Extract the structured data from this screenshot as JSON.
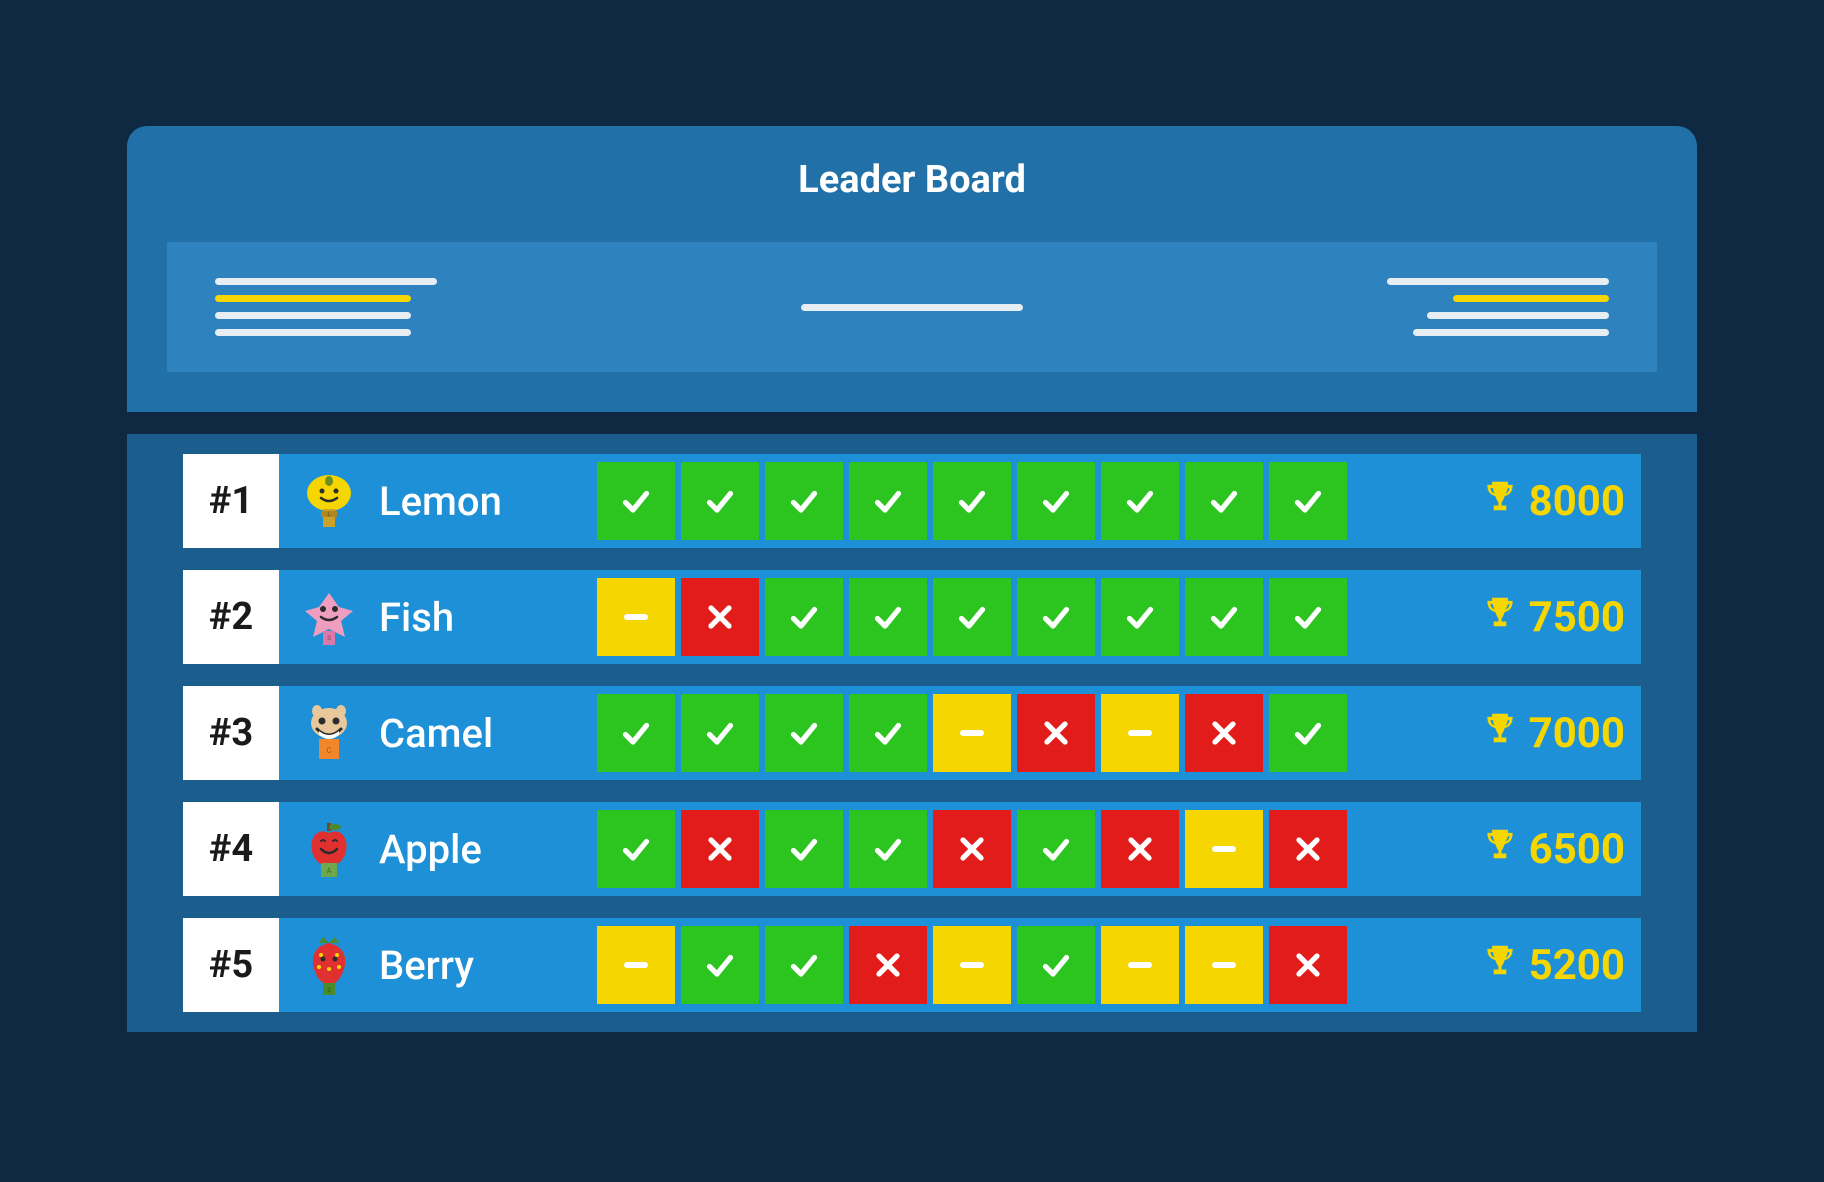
{
  "title": "Leader Board",
  "colors": {
    "page_bg": "#0f2942",
    "header_bg": "#2270a8",
    "info_bar_bg": "#2e82bd",
    "table_panel_bg": "#1b5d8c",
    "row_bg": "#1e90d7",
    "rank_bg": "#ffffff",
    "rank_text": "#1a1a1a",
    "name_text": "#ffffff",
    "title_text": "#ffffff",
    "score_text": "#f5d600",
    "trophy": "#f5d600",
    "result_correct": "#2cc51f",
    "result_wrong": "#e21b1b",
    "result_neutral": "#f5d600",
    "placeholder_white": "#e6eef4",
    "placeholder_yellow": "#f5d600"
  },
  "info_bar": {
    "left_lines": [
      {
        "color": "white",
        "width": "w220"
      },
      {
        "color": "yellow",
        "width": "w195"
      },
      {
        "color": "white",
        "width": "w195"
      },
      {
        "color": "white",
        "width": "w195"
      }
    ],
    "center_lines": [
      {
        "color": "white",
        "width": "w220"
      }
    ],
    "right_lines": [
      {
        "color": "white",
        "width": "w220"
      },
      {
        "color": "yellow",
        "width": "w155"
      },
      {
        "color": "white",
        "width": "w180"
      },
      {
        "color": "white",
        "width": "w195"
      }
    ]
  },
  "rows": [
    {
      "rank": "#1",
      "name": "Lemon",
      "avatar": "lemon",
      "results": [
        "correct",
        "correct",
        "correct",
        "correct",
        "correct",
        "correct",
        "correct",
        "correct",
        "correct"
      ],
      "score": "8000"
    },
    {
      "rank": "#2",
      "name": "Fish",
      "avatar": "fish",
      "results": [
        "neutral",
        "wrong",
        "correct",
        "correct",
        "correct",
        "correct",
        "correct",
        "correct",
        "correct"
      ],
      "score": "7500"
    },
    {
      "rank": "#3",
      "name": "Camel",
      "avatar": "camel",
      "results": [
        "correct",
        "correct",
        "correct",
        "correct",
        "neutral",
        "wrong",
        "neutral",
        "wrong",
        "correct"
      ],
      "score": "7000"
    },
    {
      "rank": "#4",
      "name": "Apple",
      "avatar": "apple",
      "results": [
        "correct",
        "wrong",
        "correct",
        "correct",
        "wrong",
        "correct",
        "wrong",
        "neutral",
        "wrong"
      ],
      "score": "6500"
    },
    {
      "rank": "#5",
      "name": "Berry",
      "avatar": "berry",
      "results": [
        "neutral",
        "correct",
        "correct",
        "wrong",
        "neutral",
        "correct",
        "neutral",
        "neutral",
        "wrong"
      ],
      "score": "5200"
    }
  ]
}
